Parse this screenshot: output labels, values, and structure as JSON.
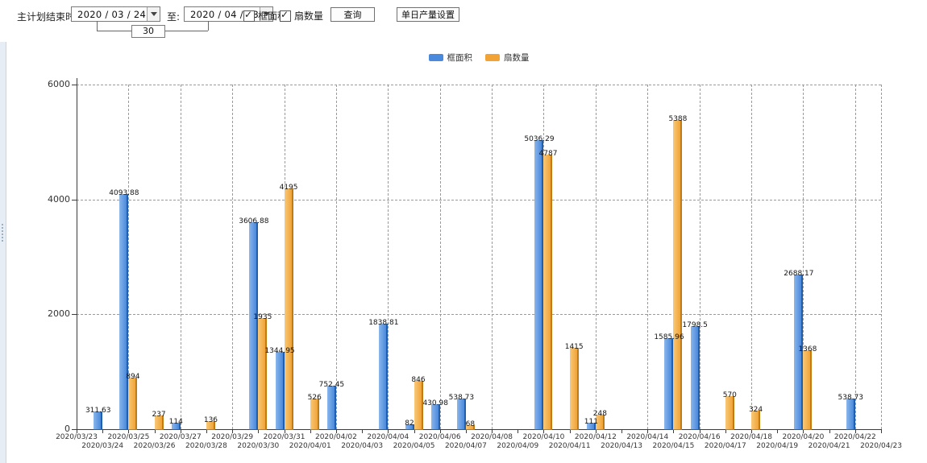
{
  "toolbar": {
    "label_plan_end": "主计划结束时间:",
    "date_start": "2020 / 03 / 24",
    "label_to": "至:",
    "date_end": "2020 / 04 / 23",
    "days_between": "30",
    "checkbox_frame": {
      "label": "框面积",
      "checked": true
    },
    "checkbox_sash": {
      "label": "扇数量",
      "checked": true
    },
    "query_button": "查询",
    "daily_output_button": "单日产量设置"
  },
  "legend": {
    "items": [
      {
        "label": "框面积",
        "color": "#4a89dc"
      },
      {
        "label": "扇数量",
        "color": "#f2a336"
      }
    ]
  },
  "chart_data": {
    "type": "bar",
    "title": "",
    "xlabel": "",
    "ylabel": "",
    "ylim": [
      0,
      6000
    ],
    "yticks": [
      0,
      2000,
      4000,
      6000
    ],
    "grid": "dashed",
    "legend_position": "top",
    "categories": [
      "2020/03/23",
      "2020/03/24",
      "2020/03/25",
      "2020/03/26",
      "2020/03/27",
      "2020/03/28",
      "2020/03/29",
      "2020/03/30",
      "2020/03/31",
      "2020/04/01",
      "2020/04/02",
      "2020/04/03",
      "2020/04/04",
      "2020/04/05",
      "2020/04/06",
      "2020/04/07",
      "2020/04/08",
      "2020/04/09",
      "2020/04/10",
      "2020/04/11",
      "2020/04/12",
      "2020/04/13",
      "2020/04/14",
      "2020/04/15",
      "2020/04/16",
      "2020/04/17",
      "2020/04/18",
      "2020/04/19",
      "2020/04/20",
      "2020/04/21",
      "2020/04/22",
      "2020/04/23"
    ],
    "series": [
      {
        "name": "框面积",
        "color": "#4a89dc",
        "color_light": "#8ab6ec",
        "color_dark": "#1f5fae",
        "values": [
          0,
          311.63,
          4093.88,
          0,
          114,
          0,
          0,
          3606.88,
          1344.95,
          0,
          752.45,
          0,
          1838.81,
          82,
          430.98,
          538.73,
          0,
          0,
          5036.29,
          0,
          111,
          0,
          0,
          1585.96,
          1798.5,
          0,
          0,
          0,
          2688.17,
          0,
          538.73,
          0
        ],
        "labels": [
          "",
          "311.63",
          "4093.88",
          "",
          "114",
          "",
          "",
          "3606.88",
          "1344.95",
          "",
          "752.45",
          "",
          "1838.81",
          "82",
          "430.98",
          "538.73",
          "",
          "",
          "5036.29",
          "",
          "111",
          "",
          "",
          "1585.96",
          "1798.5",
          "",
          "",
          "",
          "2688.17",
          "",
          "538.73",
          ""
        ]
      },
      {
        "name": "扇数量",
        "color": "#f2a336",
        "color_light": "#f8c878",
        "color_dark": "#c07b15",
        "values": [
          0,
          0,
          894,
          237,
          0,
          136,
          0,
          1935,
          4195,
          526,
          0,
          0,
          0,
          846,
          0,
          68,
          0,
          0,
          4787,
          1415,
          248,
          0,
          0,
          5388,
          0,
          570,
          324,
          0,
          1368,
          0,
          0,
          0
        ],
        "labels": [
          "",
          "",
          "894",
          "237",
          "",
          "136",
          "",
          "1935",
          "4195",
          "526",
          "",
          "",
          "",
          "846",
          "",
          "68",
          "",
          "",
          "4787",
          "1415",
          "248",
          "",
          "",
          "5388",
          "",
          "570",
          "324",
          "",
          "1368",
          "",
          "",
          ""
        ]
      }
    ]
  }
}
